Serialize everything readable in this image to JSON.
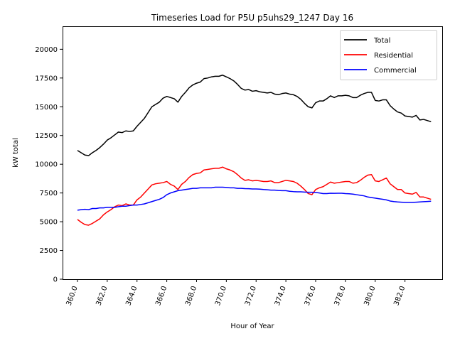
{
  "chart_data": {
    "type": "line",
    "title": "Timeseries Load for P5U p5uhs29_1247  Day 16",
    "xlabel": "Hour of Year",
    "ylabel": "kW total",
    "xlim": [
      359.0,
      384.5
    ],
    "ylim": [
      0,
      22000
    ],
    "grid": false,
    "legend_position": "top-right",
    "x_ticks": [
      360,
      362,
      364,
      366,
      368,
      370,
      372,
      374,
      376,
      378,
      380,
      382
    ],
    "x_tick_labels": [
      "360.0",
      "362.0",
      "364.0",
      "366.0",
      "368.0",
      "370.0",
      "372.0",
      "374.0",
      "376.0",
      "378.0",
      "380.0",
      "382.0"
    ],
    "y_ticks": [
      0,
      2500,
      5000,
      7500,
      10000,
      12500,
      15000,
      17500,
      20000
    ],
    "y_tick_labels": [
      "0",
      "2500",
      "5000",
      "7500",
      "10000",
      "12500",
      "15000",
      "17500",
      "20000"
    ],
    "x": [
      360.0,
      360.25,
      360.5,
      360.75,
      361.0,
      361.25,
      361.5,
      361.75,
      362.0,
      362.25,
      362.5,
      362.75,
      363.0,
      363.25,
      363.5,
      363.75,
      364.0,
      364.25,
      364.5,
      364.75,
      365.0,
      365.25,
      365.5,
      365.75,
      366.0,
      366.25,
      366.5,
      366.75,
      367.0,
      367.25,
      367.5,
      367.75,
      368.0,
      368.25,
      368.5,
      368.75,
      369.0,
      369.25,
      369.5,
      369.75,
      370.0,
      370.25,
      370.5,
      370.75,
      371.0,
      371.25,
      371.5,
      371.75,
      372.0,
      372.25,
      372.5,
      372.75,
      373.0,
      373.25,
      373.5,
      373.75,
      374.0,
      374.25,
      374.5,
      374.75,
      375.0,
      375.25,
      375.5,
      375.75,
      376.0,
      376.25,
      376.5,
      376.75,
      377.0,
      377.25,
      377.5,
      377.75,
      378.0,
      378.25,
      378.5,
      378.75,
      379.0,
      379.25,
      379.5,
      379.75,
      380.0,
      380.25,
      380.5,
      380.75,
      381.0,
      381.25,
      381.5,
      381.75,
      382.0,
      382.25,
      382.5,
      382.75,
      383.0,
      383.25,
      383.5,
      383.75
    ],
    "series": [
      {
        "name": "Total",
        "color": "#000000",
        "values": [
          11200,
          11000,
          10800,
          10750,
          11000,
          11200,
          11450,
          11750,
          12100,
          12300,
          12550,
          12800,
          12750,
          12900,
          12850,
          12900,
          13300,
          13650,
          14000,
          14500,
          15000,
          15200,
          15400,
          15750,
          15900,
          15800,
          15700,
          15400,
          15900,
          16250,
          16650,
          16900,
          17050,
          17150,
          17450,
          17500,
          17600,
          17650,
          17650,
          17750,
          17600,
          17450,
          17250,
          16950,
          16600,
          16450,
          16500,
          16350,
          16400,
          16300,
          16250,
          16200,
          16250,
          16100,
          16050,
          16150,
          16200,
          16100,
          16050,
          15900,
          15650,
          15300,
          15000,
          14900,
          15350,
          15500,
          15500,
          15700,
          15950,
          15800,
          15950,
          15950,
          16000,
          15950,
          15800,
          15800,
          16000,
          16150,
          16250,
          16250,
          15550,
          15500,
          15600,
          15600,
          15100,
          14800,
          14550,
          14450,
          14200,
          14150,
          14100,
          14250,
          13850,
          13900,
          13800,
          13700
        ]
      },
      {
        "name": "Residential",
        "color": "#ff0000",
        "values": [
          5200,
          4950,
          4750,
          4700,
          4850,
          5050,
          5250,
          5600,
          5850,
          6050,
          6300,
          6450,
          6400,
          6550,
          6450,
          6450,
          6900,
          7150,
          7500,
          7850,
          8200,
          8300,
          8350,
          8400,
          8500,
          8250,
          8100,
          7800,
          8250,
          8500,
          8850,
          9100,
          9200,
          9250,
          9500,
          9550,
          9600,
          9650,
          9650,
          9750,
          9600,
          9500,
          9350,
          9100,
          8800,
          8600,
          8650,
          8550,
          8600,
          8550,
          8500,
          8500,
          8550,
          8400,
          8400,
          8500,
          8600,
          8550,
          8500,
          8350,
          8100,
          7800,
          7450,
          7350,
          7800,
          7950,
          8050,
          8250,
          8450,
          8350,
          8400,
          8450,
          8500,
          8500,
          8350,
          8400,
          8600,
          8850,
          9050,
          9100,
          8550,
          8500,
          8650,
          8800,
          8300,
          8050,
          7800,
          7800,
          7500,
          7450,
          7400,
          7550,
          7150,
          7150,
          7050,
          6950
        ]
      },
      {
        "name": "Commercial",
        "color": "#0000ff",
        "values": [
          6000,
          6050,
          6080,
          6050,
          6150,
          6150,
          6200,
          6200,
          6250,
          6250,
          6250,
          6300,
          6350,
          6350,
          6400,
          6450,
          6450,
          6500,
          6550,
          6650,
          6750,
          6850,
          6950,
          7100,
          7350,
          7500,
          7600,
          7700,
          7750,
          7800,
          7850,
          7900,
          7900,
          7950,
          7950,
          7950,
          7950,
          8000,
          8000,
          8000,
          7980,
          7950,
          7950,
          7900,
          7900,
          7880,
          7870,
          7850,
          7850,
          7830,
          7800,
          7780,
          7750,
          7750,
          7720,
          7700,
          7700,
          7650,
          7620,
          7600,
          7600,
          7580,
          7560,
          7560,
          7550,
          7500,
          7450,
          7450,
          7480,
          7470,
          7480,
          7480,
          7450,
          7430,
          7400,
          7350,
          7300,
          7250,
          7150,
          7100,
          7050,
          7000,
          6950,
          6900,
          6800,
          6750,
          6720,
          6700,
          6680,
          6680,
          6680,
          6700,
          6720,
          6740,
          6760,
          6780
        ]
      }
    ]
  }
}
